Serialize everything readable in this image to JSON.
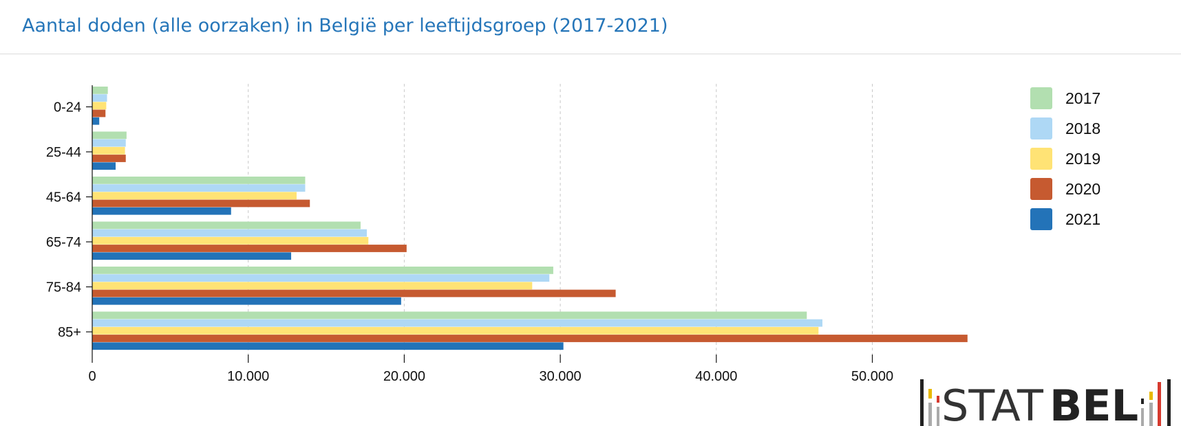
{
  "title": "Aantal doden (alle oorzaken) in België per leeftijdsgroep (2017-2021)",
  "logo": {
    "light": "STAT",
    "bold": "BEL"
  },
  "chart_data": {
    "type": "bar",
    "orientation": "horizontal",
    "title": "Aantal doden (alle oorzaken) in België per leeftijdsgroep (2017-2021)",
    "xlabel": "",
    "ylabel": "",
    "categories": [
      "0-24",
      "25-44",
      "45-64",
      "65-74",
      "75-84",
      "85+"
    ],
    "series": [
      {
        "name": "2017",
        "color": "#b2dfb0",
        "values": [
          1000,
          2200,
          13650,
          17200,
          29550,
          45800
        ]
      },
      {
        "name": "2018",
        "color": "#aed8f5",
        "values": [
          950,
          2150,
          13650,
          17600,
          29300,
          46800
        ]
      },
      {
        "name": "2019",
        "color": "#ffe375",
        "values": [
          900,
          2100,
          13100,
          17700,
          28200,
          46550
        ]
      },
      {
        "name": "2020",
        "color": "#c65a30",
        "values": [
          850,
          2150,
          13950,
          20150,
          33550,
          56100
        ]
      },
      {
        "name": "2021",
        "color": "#2373b8",
        "values": [
          450,
          1500,
          8900,
          12750,
          19800,
          30200
        ]
      }
    ],
    "xlim": [
      0,
      60000
    ],
    "xticks": [
      0,
      10000,
      20000,
      30000,
      40000,
      50000
    ],
    "xtick_labels": [
      "0",
      "10.000",
      "20.000",
      "30.000",
      "40.000",
      "50.000"
    ],
    "grid": "vertical dashed",
    "legend_position": "right"
  }
}
